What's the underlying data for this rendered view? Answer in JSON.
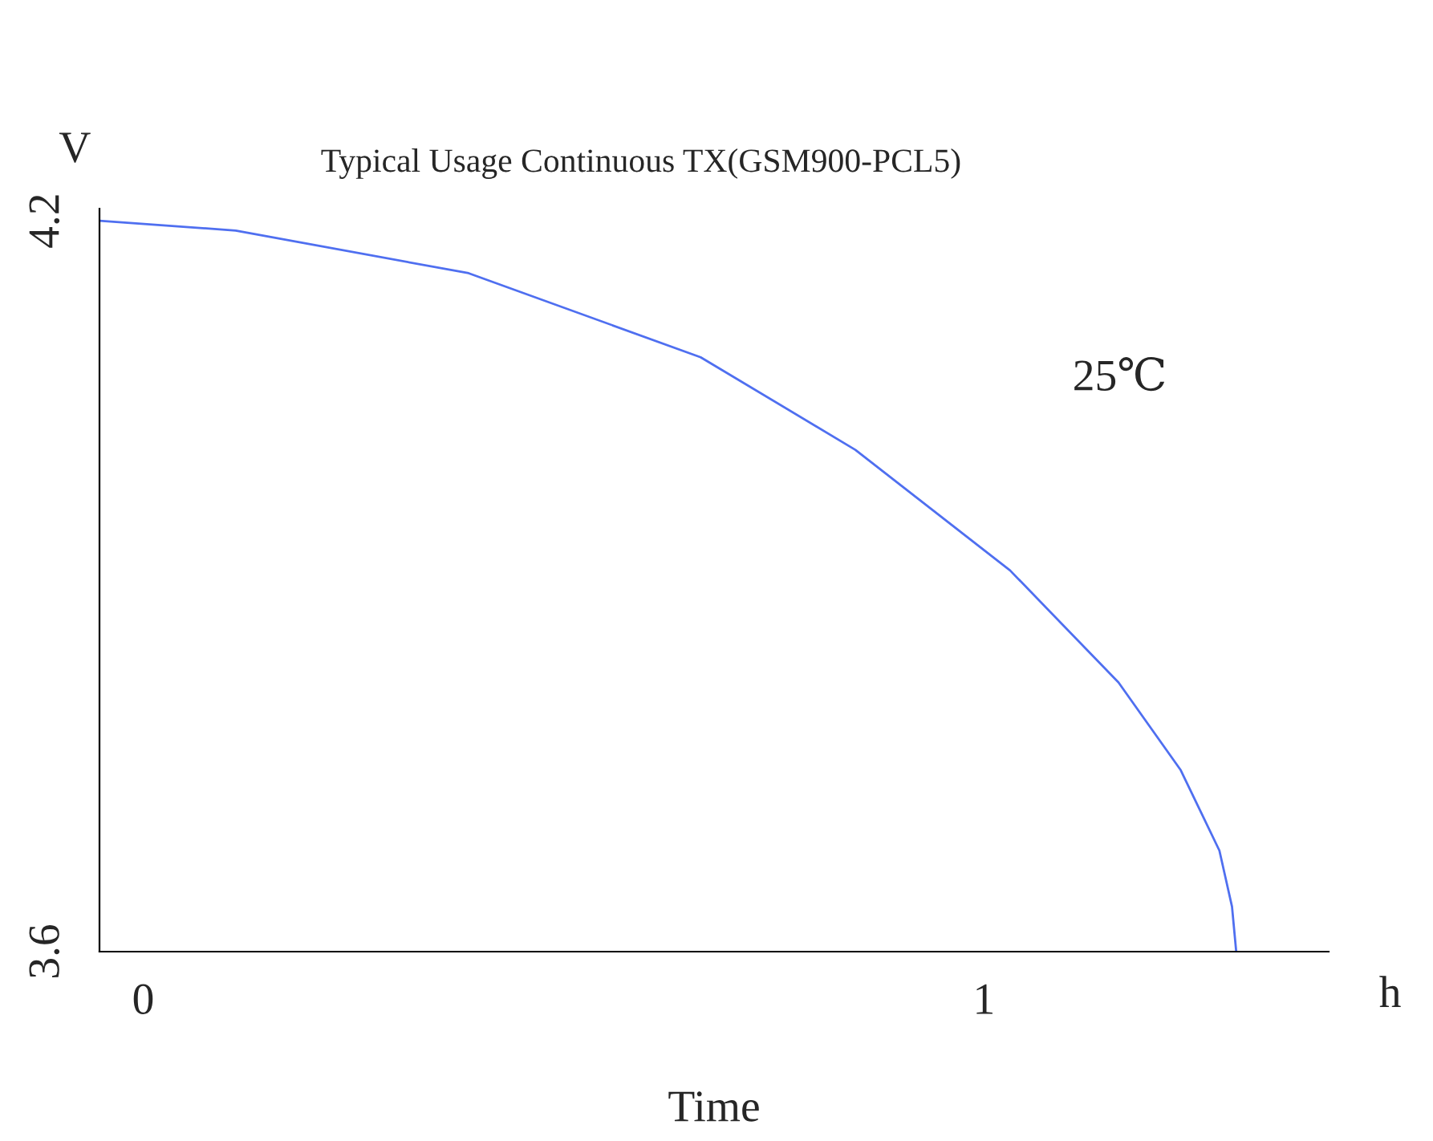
{
  "chart_data": {
    "type": "line",
    "title": "Typical Usage Continuous TX(GSM900-PCL5)",
    "xlabel": "Time",
    "ylabel": "V",
    "annotations": [
      "h",
      "25℃"
    ],
    "x": [
      -0.052,
      0.11,
      0.387,
      0.663,
      0.847,
      1.031,
      1.16,
      1.234,
      1.28,
      1.295,
      1.3
    ],
    "series": [
      {
        "color": "#4f6ff0",
        "values": [
          4.2,
          4.192,
          4.157,
          4.088,
          4.012,
          3.913,
          3.821,
          3.749,
          3.683,
          3.637,
          3.6
        ]
      }
    ],
    "xlim": [
      -0.052,
      1.41
    ],
    "ylim": [
      3.6,
      4.21
    ],
    "xticks": [
      0,
      1
    ],
    "yticks": [
      3.6,
      4.2
    ],
    "grid": false,
    "legend": false,
    "marker": "none",
    "line_style": "solid"
  }
}
